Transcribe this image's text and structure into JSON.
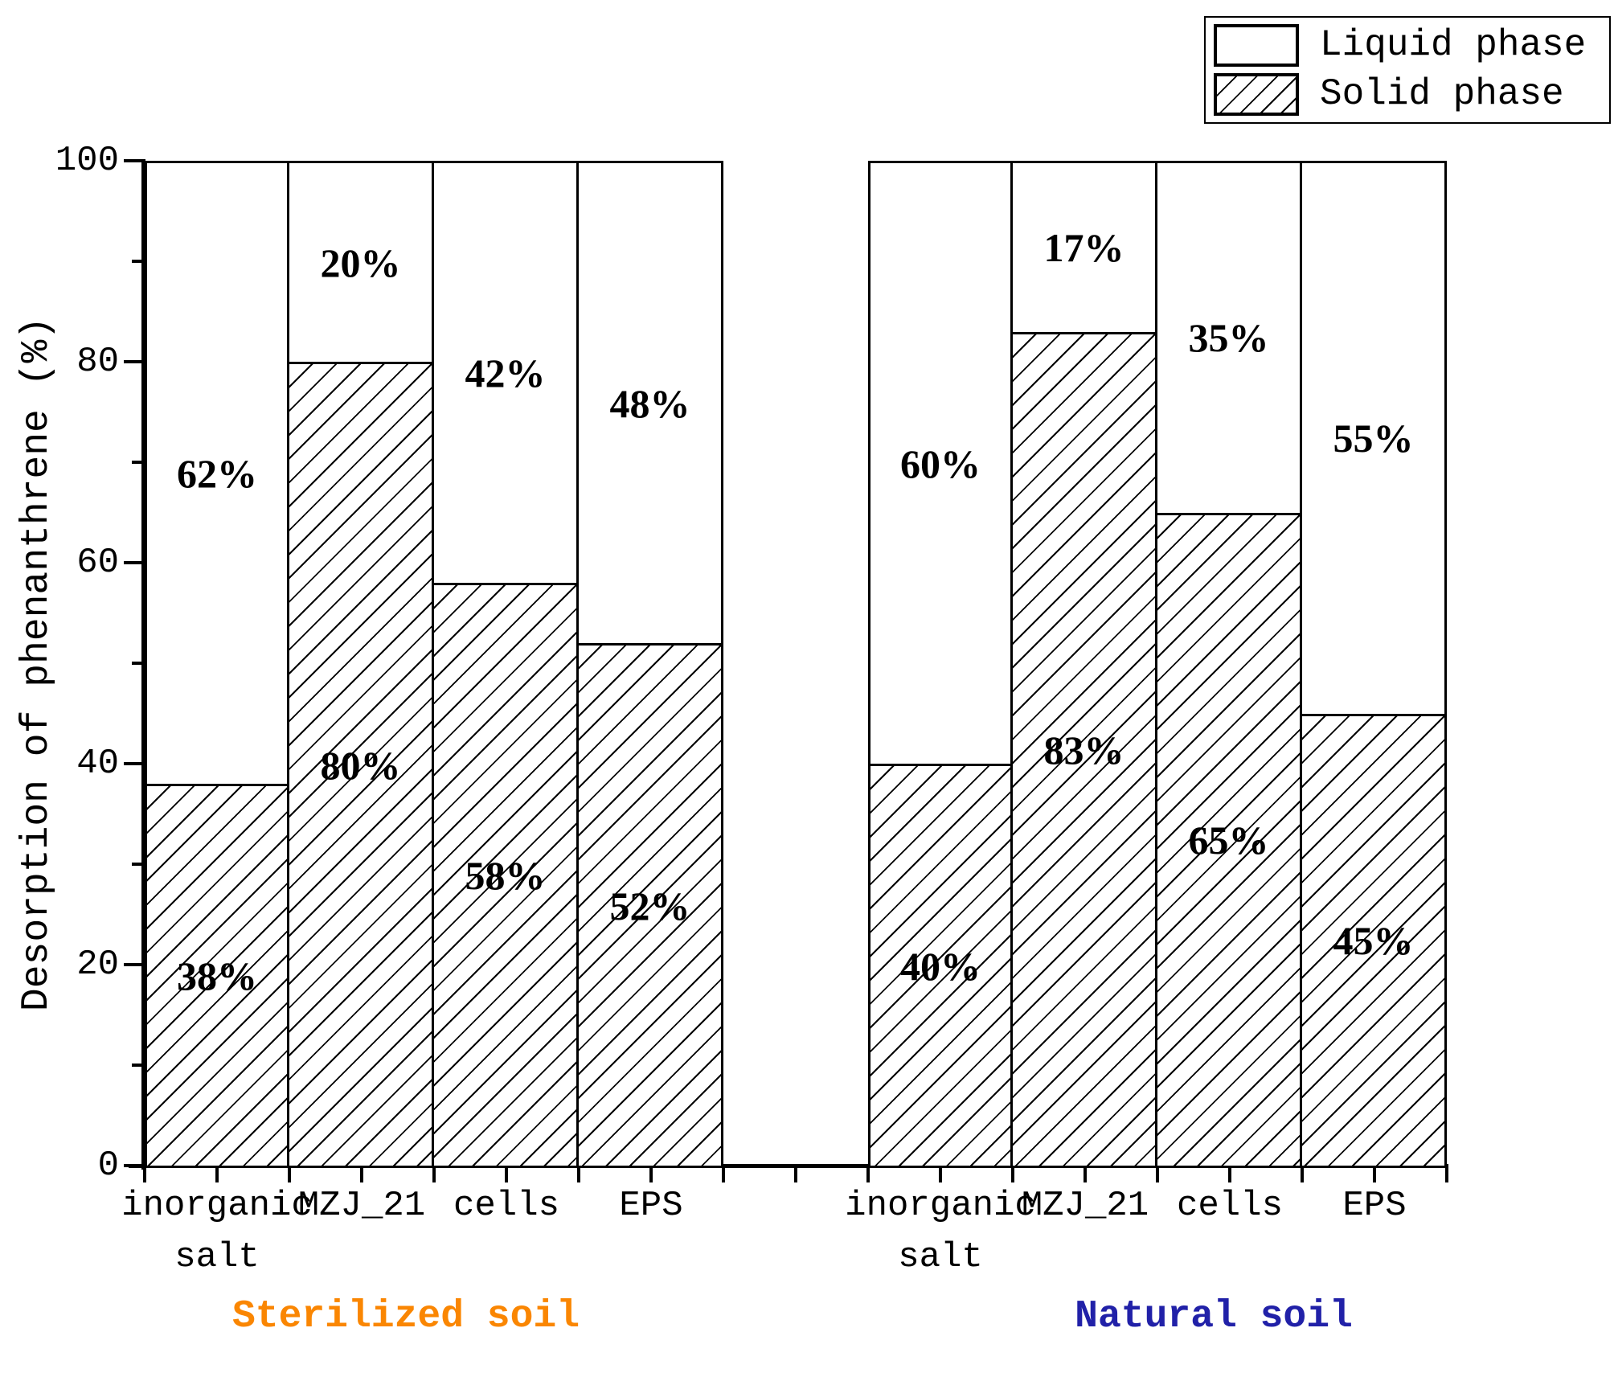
{
  "figure": {
    "background": "#ffffff",
    "y_axis_label": "Desorption of phenanthrene (%)",
    "group_titles": [
      {
        "text": "Sterilized soil",
        "color": "#FA8602"
      },
      {
        "text": "Natural soil",
        "color": "#2121A8"
      }
    ]
  },
  "legend": {
    "entries": [
      {
        "label": "Liquid phase",
        "swatch": "white"
      },
      {
        "label": "Solid phase",
        "swatch": "diagonal-hatch"
      }
    ]
  },
  "chart_data": {
    "type": "bar",
    "stacked": true,
    "unit": "%",
    "title": "",
    "xlabel": "",
    "ylabel": "Desorption of phenanthrene (%)",
    "ylim": [
      0,
      100
    ],
    "yticks": [
      0,
      20,
      40,
      60,
      80,
      100
    ],
    "yticks_minor": [
      10,
      30,
      50,
      70,
      90
    ],
    "grid": false,
    "legend_position": "top-right",
    "legend_entries": [
      "Liquid phase",
      "Solid phase"
    ],
    "segment_label_format": "value + %",
    "groups": [
      {
        "name": "Sterilized soil",
        "name_color": "#FA8602",
        "categories": [
          {
            "label": "inorganic salt",
            "lines": [
              "inorganic",
              "salt"
            ]
          },
          {
            "label": "MZJ_21",
            "lines": [
              "MZJ_21"
            ]
          },
          {
            "label": "cells",
            "lines": [
              "cells"
            ]
          },
          {
            "label": "EPS",
            "lines": [
              "EPS"
            ]
          }
        ],
        "series": [
          {
            "name": "Solid phase",
            "pattern": "diagonal-hatch",
            "values": [
              38,
              80,
              58,
              52
            ]
          },
          {
            "name": "Liquid phase",
            "pattern": "white",
            "values": [
              62,
              20,
              42,
              48
            ]
          }
        ]
      },
      {
        "name": "Natural soil",
        "name_color": "#2121A8",
        "categories": [
          {
            "label": "inorganic salt",
            "lines": [
              "inorganic",
              "salt"
            ]
          },
          {
            "label": "MZJ_21",
            "lines": [
              "MZJ_21"
            ]
          },
          {
            "label": "cells",
            "lines": [
              "cells"
            ]
          },
          {
            "label": "EPS",
            "lines": [
              "EPS"
            ]
          }
        ],
        "series": [
          {
            "name": "Solid phase",
            "pattern": "diagonal-hatch",
            "values": [
              40,
              83,
              65,
              45
            ]
          },
          {
            "name": "Liquid phase",
            "pattern": "white",
            "values": [
              60,
              17,
              35,
              55
            ]
          }
        ]
      }
    ]
  }
}
